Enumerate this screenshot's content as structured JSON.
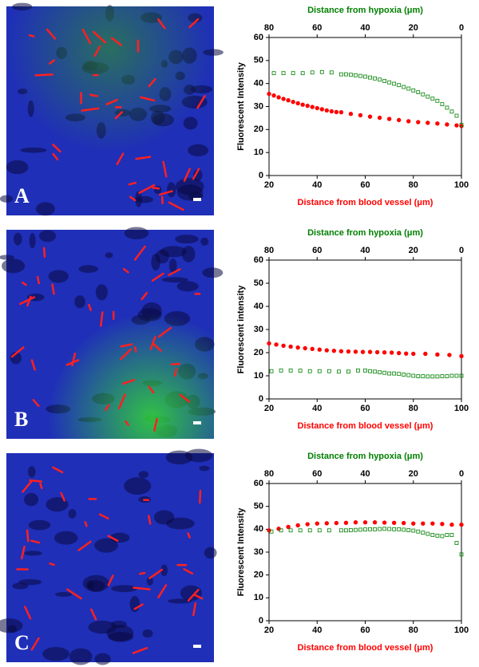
{
  "panels": [
    {
      "label": "A"
    },
    {
      "label": "B"
    },
    {
      "label": "C"
    }
  ],
  "chart_data": [
    {
      "type": "scatter",
      "y_label": "Fluorescent Intensity",
      "x_label": "Distance from blood vessel (μm)",
      "x2_label": "Distance from hypoxia (μm)",
      "xlim": [
        20,
        100
      ],
      "xticks": [
        20,
        40,
        60,
        80,
        100
      ],
      "x2lim": [
        80,
        0
      ],
      "x2ticks": [
        80,
        60,
        40,
        20,
        0
      ],
      "ylim": [
        0,
        60
      ],
      "yticks": [
        0,
        10,
        20,
        30,
        40,
        50,
        60
      ],
      "series": [
        {
          "color": "#ff0000",
          "marker": "circle",
          "filled": true,
          "x": [
            20,
            22,
            24,
            26,
            28,
            30,
            32,
            34,
            36,
            38,
            40,
            42,
            44,
            46,
            48,
            50,
            54,
            58,
            62,
            66,
            70,
            74,
            78,
            82,
            86,
            90,
            94,
            98,
            100
          ],
          "values": [
            35.5,
            34.8,
            34.0,
            33.3,
            32.7,
            32.0,
            31.4,
            30.8,
            30.3,
            29.8,
            29.3,
            28.8,
            28.3,
            27.9,
            27.6,
            27.5,
            26.8,
            26.2,
            25.6,
            25.1,
            24.6,
            24.1,
            23.6,
            23.2,
            22.9,
            22.6,
            22.2,
            21.8,
            21.5
          ]
        },
        {
          "color": "#008000",
          "marker": "square",
          "filled": false,
          "axis": "x2",
          "x": [
            78,
            74,
            70,
            66,
            62,
            58,
            54,
            50,
            48,
            46,
            44,
            42,
            40,
            38,
            36,
            34,
            32,
            30,
            28,
            26,
            24,
            22,
            20,
            18,
            16,
            14,
            12,
            10,
            8,
            6,
            4,
            2,
            0
          ],
          "values": [
            44.5,
            44.5,
            44.5,
            44.5,
            44.8,
            45,
            44.8,
            44,
            44,
            43.8,
            43.6,
            43.3,
            43,
            42.6,
            42.2,
            41.7,
            41.1,
            40.5,
            39.9,
            39.3,
            38.5,
            37.8,
            37,
            36.2,
            35.3,
            34.3,
            33.4,
            32.5,
            31,
            29.5,
            27.8,
            26,
            22
          ]
        }
      ]
    },
    {
      "type": "scatter",
      "y_label": "Fluorescent intensity",
      "x_label": "Distance from blood vessel (μm)",
      "x2_label": "Distance from hypoxia (μm)",
      "xlim": [
        20,
        100
      ],
      "xticks": [
        20,
        40,
        60,
        80,
        100
      ],
      "x2lim": [
        80,
        0
      ],
      "x2ticks": [
        80,
        60,
        40,
        20,
        0
      ],
      "ylim": [
        0,
        60
      ],
      "yticks": [
        0,
        10,
        20,
        30,
        40,
        50,
        60
      ],
      "series": [
        {
          "color": "#ff0000",
          "marker": "circle",
          "filled": true,
          "x": [
            20,
            23,
            26,
            29,
            32,
            35,
            38,
            41,
            44,
            47,
            50,
            53,
            56,
            59,
            62,
            65,
            68,
            71,
            74,
            77,
            80,
            85,
            90,
            95,
            100
          ],
          "values": [
            24,
            23.5,
            23,
            22.6,
            22.2,
            21.9,
            21.6,
            21.3,
            21,
            20.8,
            20.6,
            20.5,
            20.4,
            20.3,
            20.3,
            20.2,
            20.1,
            20,
            19.8,
            19.6,
            19.5,
            19.5,
            19.2,
            19,
            18.5
          ]
        },
        {
          "color": "#008000",
          "marker": "square",
          "filled": false,
          "axis": "x2",
          "x": [
            79,
            75,
            71,
            67,
            63,
            59,
            55,
            51,
            47,
            43,
            40,
            38,
            36,
            34,
            32,
            30,
            28,
            26,
            24,
            22,
            20,
            18,
            16,
            14,
            12,
            10,
            8,
            6,
            4,
            2,
            0
          ],
          "values": [
            12,
            12.3,
            12.3,
            12.2,
            12,
            12,
            12,
            11.8,
            11.8,
            12.3,
            12.3,
            12,
            11.8,
            11.5,
            11.3,
            11,
            11,
            10.8,
            10.5,
            10.3,
            10,
            9.8,
            9.8,
            9.7,
            9.7,
            9.7,
            9.8,
            9.8,
            10,
            10,
            10
          ]
        }
      ]
    },
    {
      "type": "scatter",
      "y_label": "Fluorescent Intensity",
      "x_label": "Distance from blood vessel (μm)",
      "x2_label": "Distance from hypoxia (μm)",
      "xlim": [
        20,
        100
      ],
      "xticks": [
        20,
        40,
        60,
        80,
        100
      ],
      "x2lim": [
        80,
        0
      ],
      "x2ticks": [
        80,
        60,
        40,
        20,
        0
      ],
      "ylim": [
        0,
        60
      ],
      "yticks": [
        0,
        10,
        20,
        30,
        40,
        50,
        60
      ],
      "series": [
        {
          "color": "#ff0000",
          "marker": "circle",
          "filled": true,
          "x": [
            20,
            24,
            28,
            32,
            36,
            40,
            44,
            48,
            52,
            56,
            60,
            64,
            68,
            72,
            76,
            80,
            84,
            88,
            92,
            96,
            100
          ],
          "values": [
            39.5,
            40.2,
            41,
            41.7,
            42.2,
            42.5,
            42.6,
            42.7,
            42.8,
            43,
            43,
            43,
            42.9,
            42.8,
            42.7,
            42.5,
            42.5,
            42.5,
            42.3,
            42,
            42
          ]
        },
        {
          "color": "#008000",
          "marker": "square",
          "filled": false,
          "axis": "x2",
          "x": [
            79,
            75,
            71,
            67,
            63,
            59,
            55,
            50,
            48,
            46,
            44,
            42,
            40,
            38,
            36,
            34,
            32,
            30,
            28,
            26,
            24,
            22,
            20,
            18,
            16,
            14,
            12,
            10,
            8,
            6,
            4,
            2,
            0
          ],
          "values": [
            39,
            39.5,
            39.5,
            39.5,
            39.5,
            39.5,
            39.5,
            39.5,
            39.5,
            39.6,
            39.7,
            39.8,
            39.9,
            40,
            40,
            40.1,
            40.2,
            40.1,
            40,
            40,
            39.8,
            39.6,
            39.4,
            39,
            38.5,
            38,
            37.5,
            37.2,
            37,
            37.5,
            37.5,
            34,
            29
          ]
        }
      ]
    }
  ]
}
